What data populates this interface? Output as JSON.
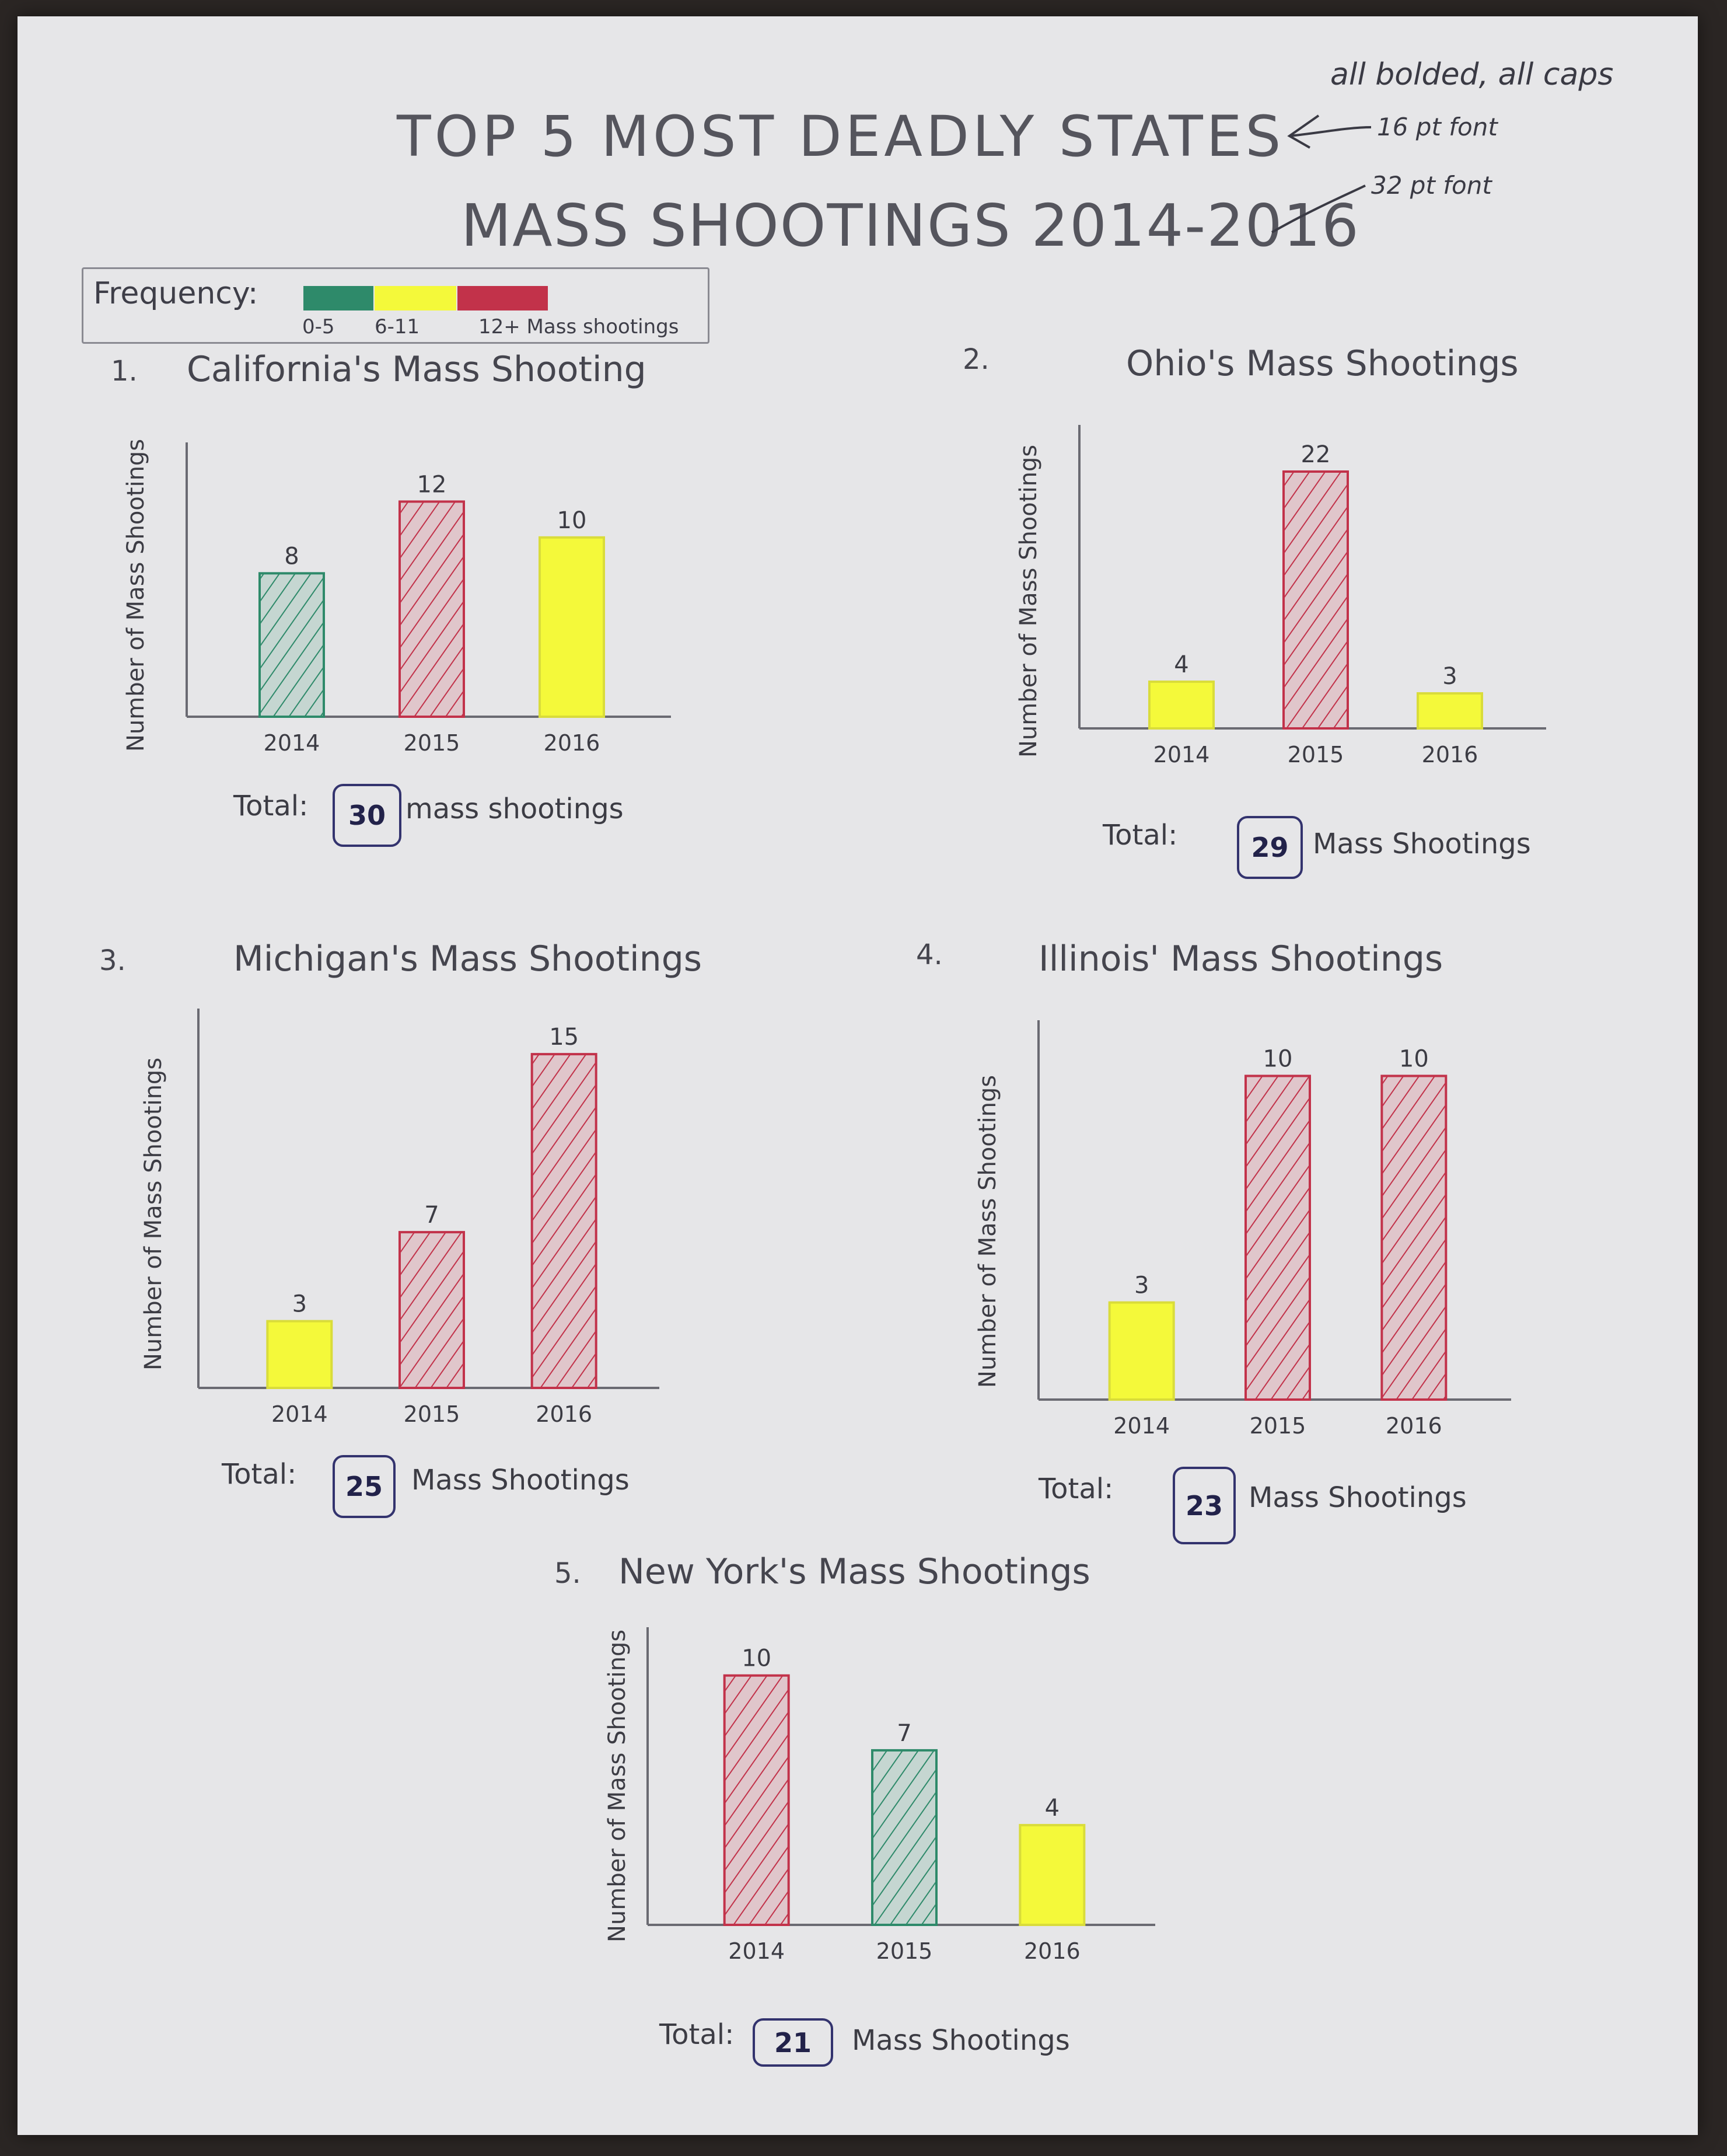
{
  "title": {
    "line1": "TOP 5 MOST DEADLY STATES",
    "line2": "MASS SHOOTINGS 2014-2016"
  },
  "notes": {
    "all_caps": "all bolded, all caps",
    "font16": "16 pt font",
    "font32": "32 pt font"
  },
  "legend": {
    "title": "Frequency:",
    "items": [
      {
        "label": "0-5",
        "color": "#2e8a6a"
      },
      {
        "label": "6-11",
        "color": "#f4f93a"
      },
      {
        "label": "12+ Mass shootings",
        "color": "#c2324a"
      }
    ]
  },
  "colors": {
    "green": "#2e8a6a",
    "yellow": "#f4f93a",
    "red": "#c2324a",
    "axis": "#6a6a72",
    "ink": "#33336e"
  },
  "panels": [
    {
      "num": "1.",
      "title": "California's Mass Shooting",
      "ylabel": "Number of Mass Shootings",
      "total_label": "Total:",
      "total": "30",
      "total_unit": "mass shootings"
    },
    {
      "num": "2.",
      "title": "Ohio's Mass Shootings",
      "ylabel": "Number of Mass Shootings",
      "total_label": "Total:",
      "total": "29",
      "total_unit": "Mass Shootings"
    },
    {
      "num": "3.",
      "title": "Michigan's Mass Shootings",
      "ylabel": "Number of Mass Shootings",
      "total_label": "Total:",
      "total": "25",
      "total_unit": "Mass Shootings"
    },
    {
      "num": "4.",
      "title": "Illinois' Mass Shootings",
      "ylabel": "Number of Mass Shootings",
      "total_label": "Total:",
      "total": "23",
      "total_unit": "Mass Shootings"
    },
    {
      "num": "5.",
      "title": "New York's Mass Shootings",
      "ylabel": "Number of Mass Shootings",
      "total_label": "Total:",
      "total": "21",
      "total_unit": "Mass Shootings"
    }
  ],
  "chart_data": [
    {
      "type": "bar",
      "title": "California's Mass Shooting",
      "ylabel": "Number of Mass Shootings",
      "categories": [
        "2014",
        "2015",
        "2016"
      ],
      "values": [
        8,
        12,
        10
      ],
      "bar_colors": [
        "green",
        "red",
        "yellow"
      ]
    },
    {
      "type": "bar",
      "title": "Ohio's Mass Shootings",
      "ylabel": "Number of Mass Shootings",
      "categories": [
        "2014",
        "2015",
        "2016"
      ],
      "values": [
        4,
        22,
        3
      ],
      "bar_colors": [
        "yellow",
        "red",
        "yellow"
      ]
    },
    {
      "type": "bar",
      "title": "Michigan's Mass Shootings",
      "ylabel": "Number of Mass Shootings",
      "categories": [
        "2014",
        "2015",
        "2016"
      ],
      "values": [
        3,
        7,
        15
      ],
      "bar_colors": [
        "yellow",
        "red",
        "red"
      ]
    },
    {
      "type": "bar",
      "title": "Illinois' Mass Shootings",
      "ylabel": "Number of Mass Shootings",
      "categories": [
        "2014",
        "2015",
        "2016"
      ],
      "values": [
        3,
        10,
        10
      ],
      "bar_colors": [
        "yellow",
        "red",
        "red"
      ]
    },
    {
      "type": "bar",
      "title": "New York's Mass Shootings",
      "ylabel": "Number of Mass Shootings",
      "categories": [
        "2014",
        "2015",
        "2016"
      ],
      "values": [
        10,
        7,
        4
      ],
      "bar_colors": [
        "red",
        "green",
        "yellow"
      ]
    }
  ]
}
